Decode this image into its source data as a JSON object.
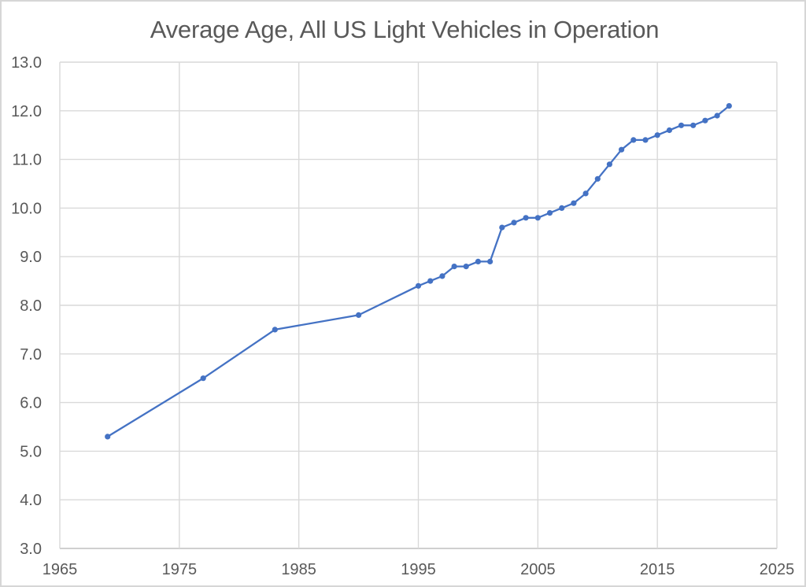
{
  "window": {
    "background": "#FFFFFF",
    "border_color": "#D6D6D6"
  },
  "chart_data": {
    "type": "line",
    "title": "Average Age, All US Light Vehicles in Operation",
    "x": [
      1969,
      1977,
      1983,
      1990,
      1995,
      1996,
      1997,
      1998,
      1999,
      2000,
      2001,
      2002,
      2003,
      2004,
      2005,
      2006,
      2007,
      2008,
      2009,
      2010,
      2011,
      2012,
      2013,
      2014,
      2015,
      2016,
      2017,
      2018,
      2019,
      2020,
      2021
    ],
    "values": [
      5.3,
      6.5,
      7.5,
      7.8,
      8.4,
      8.5,
      8.6,
      8.8,
      8.8,
      8.9,
      8.9,
      9.6,
      9.7,
      9.8,
      9.8,
      9.9,
      10.0,
      10.1,
      10.3,
      10.6,
      10.9,
      11.2,
      11.4,
      11.4,
      11.5,
      11.6,
      11.7,
      11.7,
      11.8,
      11.9,
      12.1
    ],
    "xlabel": "",
    "ylabel": "",
    "xlim": [
      1965,
      2025
    ],
    "ylim": [
      3.0,
      13.0
    ],
    "x_ticks": [
      1965,
      1975,
      1985,
      1995,
      2005,
      2015,
      2025
    ],
    "x_tick_labels": [
      "1965",
      "1975",
      "1985",
      "1995",
      "2005",
      "2015",
      "2025"
    ],
    "y_ticks": [
      3,
      4,
      5,
      6,
      7,
      8,
      9,
      10,
      11,
      12,
      13
    ],
    "y_tick_labels": [
      "3.0",
      "4.0",
      "5.0",
      "6.0",
      "7.0",
      "8.0",
      "9.0",
      "10.0",
      "11.0",
      "12.0",
      "13.0"
    ],
    "grid": true,
    "legend": false,
    "marker": "circle",
    "line_color": "#4472C4",
    "grid_color": "#D9D9D9",
    "axis_line_color": "#BFBFBF",
    "tick_text_color": "#595959",
    "title_color": "#595959"
  }
}
